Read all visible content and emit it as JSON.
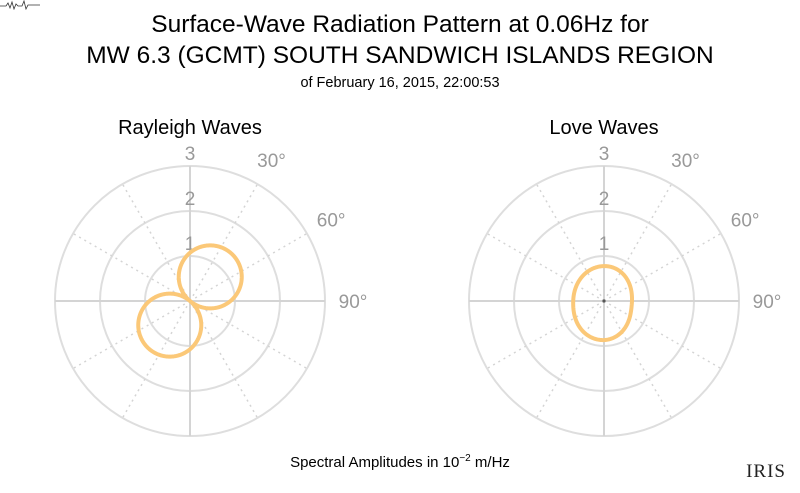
{
  "title": {
    "line1": "Surface-Wave Radiation Pattern at 0.06Hz for",
    "line2": "MW 6.3 (GCMT) SOUTH SANDWICH ISLANDS REGION",
    "line3": "of February 16, 2015, 22:00:53"
  },
  "footer": {
    "prefix": "Spectral Amplitudes in 10",
    "exponent": "−2",
    "suffix": " m/Hz"
  },
  "logo_text": "IRIS",
  "chart_data": [
    {
      "type": "polar-line",
      "title": "Rayleigh Waves",
      "radial_ticks": [
        "1",
        "2",
        "3"
      ],
      "radial_max": 3,
      "angle_ticks": [
        "30°",
        "60°",
        "90°"
      ],
      "series": [
        {
          "color": "#fbc878",
          "pattern": "two-lobe",
          "lobes": [
            {
              "azimuth_deg": 40,
              "amplitude": 1.4
            },
            {
              "azimuth_deg": 232,
              "amplitude": 1.4
            }
          ]
        }
      ]
    },
    {
      "type": "polar-line",
      "title": "Love Waves",
      "radial_ticks": [
        "1",
        "2",
        "3"
      ],
      "radial_max": 3,
      "angle_ticks": [
        "30°",
        "60°",
        "90°"
      ],
      "series": [
        {
          "color": "#fbc878",
          "pattern": "four-lobe",
          "lobes": [
            {
              "azimuth_deg": 4,
              "amplitude": 0.8
            },
            {
              "azimuth_deg": 94,
              "amplitude": 0.55
            },
            {
              "azimuth_deg": 184,
              "amplitude": 0.95
            },
            {
              "azimuth_deg": 274,
              "amplitude": 0.65
            }
          ]
        }
      ]
    }
  ]
}
